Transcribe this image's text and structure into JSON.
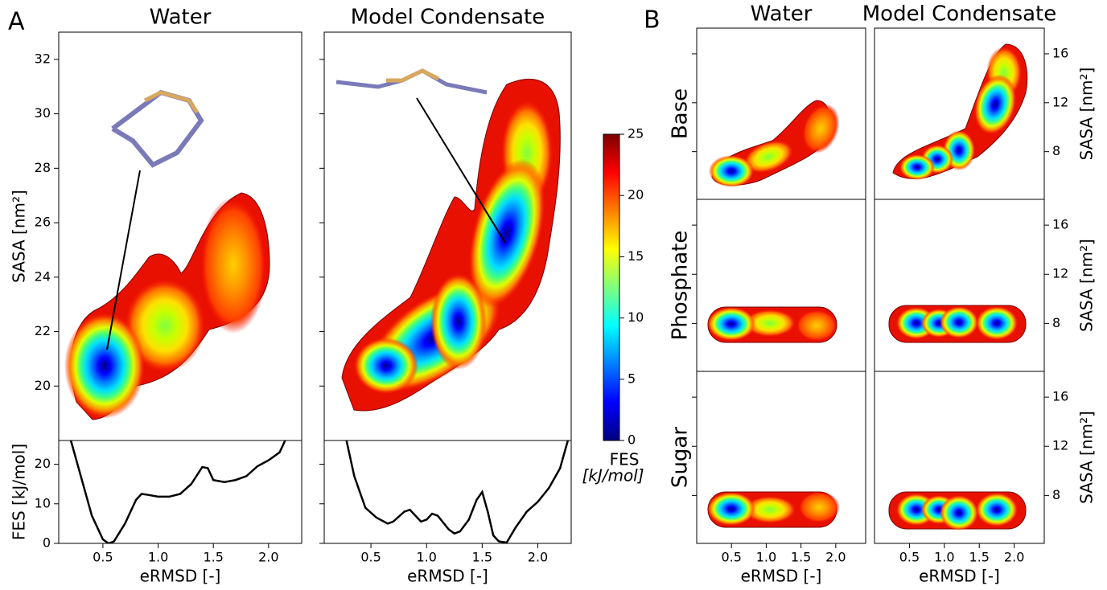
{
  "panel_labels": [
    "A",
    "B"
  ],
  "chart_data": [
    {
      "type": "contour",
      "title": "Water",
      "ylabel": "SASA [nm²]",
      "xlim": [
        0.1,
        2.3
      ],
      "ylim": [
        18,
        33
      ],
      "yticks": [
        20,
        22,
        24,
        26,
        28,
        30,
        32
      ]
    },
    {
      "type": "line",
      "ylabel": "FES [kJ/mol]",
      "xlabel": "eRMSD [-]",
      "xlim": [
        0.1,
        2.3
      ],
      "ylim": [
        0,
        26
      ],
      "yticks": [
        0,
        10,
        20
      ],
      "xticks": [
        {
          "value": 0.5,
          "label": "0.5"
        },
        {
          "value": 1,
          "label": "1.0"
        },
        {
          "value": 1.5,
          "label": "1.5"
        },
        {
          "value": 2,
          "label": "2.0"
        }
      ],
      "color": "#000000",
      "x": [
        0.21,
        0.3,
        0.4,
        0.5,
        0.55,
        0.6,
        0.7,
        0.8,
        0.85,
        0.9,
        1.0,
        1.1,
        1.2,
        1.3,
        1.4,
        1.45,
        1.5,
        1.6,
        1.7,
        1.8,
        1.9,
        2.0,
        2.1,
        2.15
      ],
      "values": [
        26,
        17,
        7,
        1,
        0,
        0.5,
        5,
        11,
        12.5,
        12.3,
        11.8,
        11.8,
        12.5,
        15,
        19.3,
        19,
        16,
        15.5,
        16,
        17,
        19.5,
        21,
        23,
        26
      ]
    },
    {
      "type": "contour",
      "title": "Model Condensate",
      "xlim": [
        0.08,
        2.3
      ],
      "ylim": [
        18,
        33
      ]
    },
    {
      "type": "line",
      "xlabel": "eRMSD [-]",
      "xlim": [
        0.08,
        2.3
      ],
      "ylim": [
        0,
        26
      ],
      "xticks": [
        {
          "value": 0.5,
          "label": "0.5"
        },
        {
          "value": 1,
          "label": "1.0"
        },
        {
          "value": 1.5,
          "label": "1.5"
        },
        {
          "value": 2,
          "label": "2.0"
        }
      ],
      "color": "#000000",
      "x": [
        0.28,
        0.35,
        0.45,
        0.55,
        0.65,
        0.7,
        0.8,
        0.85,
        0.9,
        0.95,
        1.0,
        1.05,
        1.1,
        1.2,
        1.25,
        1.3,
        1.38,
        1.45,
        1.5,
        1.55,
        1.6,
        1.65,
        1.72,
        1.8,
        1.9,
        2.0,
        2.1,
        2.2,
        2.27
      ],
      "values": [
        26,
        17,
        9,
        6.5,
        5,
        5.5,
        8,
        8.5,
        7,
        5.5,
        6,
        7.5,
        7,
        3.5,
        2.5,
        3,
        6,
        11,
        13,
        8,
        2,
        0.5,
        0.2,
        4,
        8,
        10.5,
        14,
        19,
        26
      ]
    },
    {
      "type": "colorbar",
      "label": [
        "FES",
        "[kJ/mol]"
      ],
      "lim": [
        0,
        25
      ],
      "ticks": [
        0,
        5,
        10,
        15,
        20,
        25
      ],
      "colormap": [
        "#00007f",
        "#0000ff",
        "#007fff",
        "#00ffff",
        "#7fff7f",
        "#ffff00",
        "#ff7f00",
        "#ff0000",
        "#7f0000"
      ]
    },
    {
      "type": "contour-grid",
      "columns": [
        "Water",
        "Model Condensate"
      ],
      "rows": [
        "Base",
        "Phosphate",
        "Sugar"
      ],
      "xlabel": "eRMSD [-]",
      "ylabel": "SASA [nm²]",
      "xlim": [
        0,
        2.43
      ],
      "ylim": [
        4.1,
        18.1
      ],
      "xticks": [
        {
          "value": 0.5,
          "label": "0.5"
        },
        {
          "value": 1,
          "label": "1.0"
        },
        {
          "value": 1.5,
          "label": "1.5"
        },
        {
          "value": 2,
          "label": "2.0"
        }
      ],
      "yticks": [
        8,
        12,
        16
      ]
    }
  ]
}
